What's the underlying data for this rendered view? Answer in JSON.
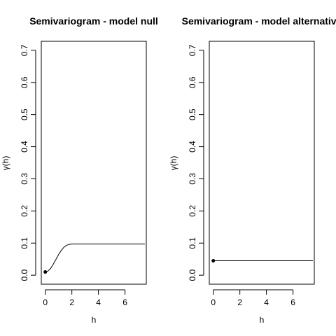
{
  "chart_data": [
    {
      "type": "line",
      "title": "Semivariogram - model null",
      "xlabel": "h",
      "ylabel": "γ(h)",
      "xlim": [
        -0.3,
        7.6
      ],
      "ylim": [
        -0.028,
        0.728
      ],
      "xticks": [
        0,
        2,
        4,
        6
      ],
      "xtick_labels": [
        "0",
        "2",
        "4",
        "6"
      ],
      "yticks": [
        0.0,
        0.1,
        0.2,
        0.3,
        0.4,
        0.5,
        0.6,
        0.7
      ],
      "ytick_labels": [
        "0.0",
        "0.1",
        "0.2",
        "0.3",
        "0.4",
        "0.5",
        "0.6",
        "0.7"
      ],
      "grid": false,
      "series": [
        {
          "kind": "line",
          "x": [
            0,
            0.2,
            0.4,
            0.6,
            0.8,
            1.0,
            1.2,
            1.4,
            1.6,
            1.8,
            2.0,
            2.5,
            3,
            4,
            5,
            6,
            7.5
          ],
          "y": [
            0.01,
            0.013,
            0.021,
            0.034,
            0.049,
            0.064,
            0.077,
            0.087,
            0.093,
            0.096,
            0.097,
            0.097,
            0.097,
            0.097,
            0.097,
            0.097,
            0.097
          ]
        },
        {
          "kind": "point",
          "x": [
            0
          ],
          "y": [
            0.01
          ]
        }
      ]
    },
    {
      "type": "line",
      "title": "Semivariogram - model alternative",
      "xlabel": "h",
      "ylabel": "γ(h)",
      "xlim": [
        -0.3,
        7.6
      ],
      "ylim": [
        -0.028,
        0.728
      ],
      "xticks": [
        0,
        2,
        4,
        6
      ],
      "xtick_labels": [
        "0",
        "2",
        "4",
        "6"
      ],
      "yticks": [
        0.0,
        0.1,
        0.2,
        0.3,
        0.4,
        0.5,
        0.6,
        0.7
      ],
      "ytick_labels": [
        "0.0",
        "0.1",
        "0.2",
        "0.3",
        "0.4",
        "0.5",
        "0.6",
        "0.7"
      ],
      "grid": false,
      "series": [
        {
          "kind": "line",
          "x": [
            0,
            7.5
          ],
          "y": [
            0.045,
            0.045
          ]
        },
        {
          "kind": "point",
          "x": [
            0
          ],
          "y": [
            0.045
          ]
        }
      ]
    }
  ]
}
